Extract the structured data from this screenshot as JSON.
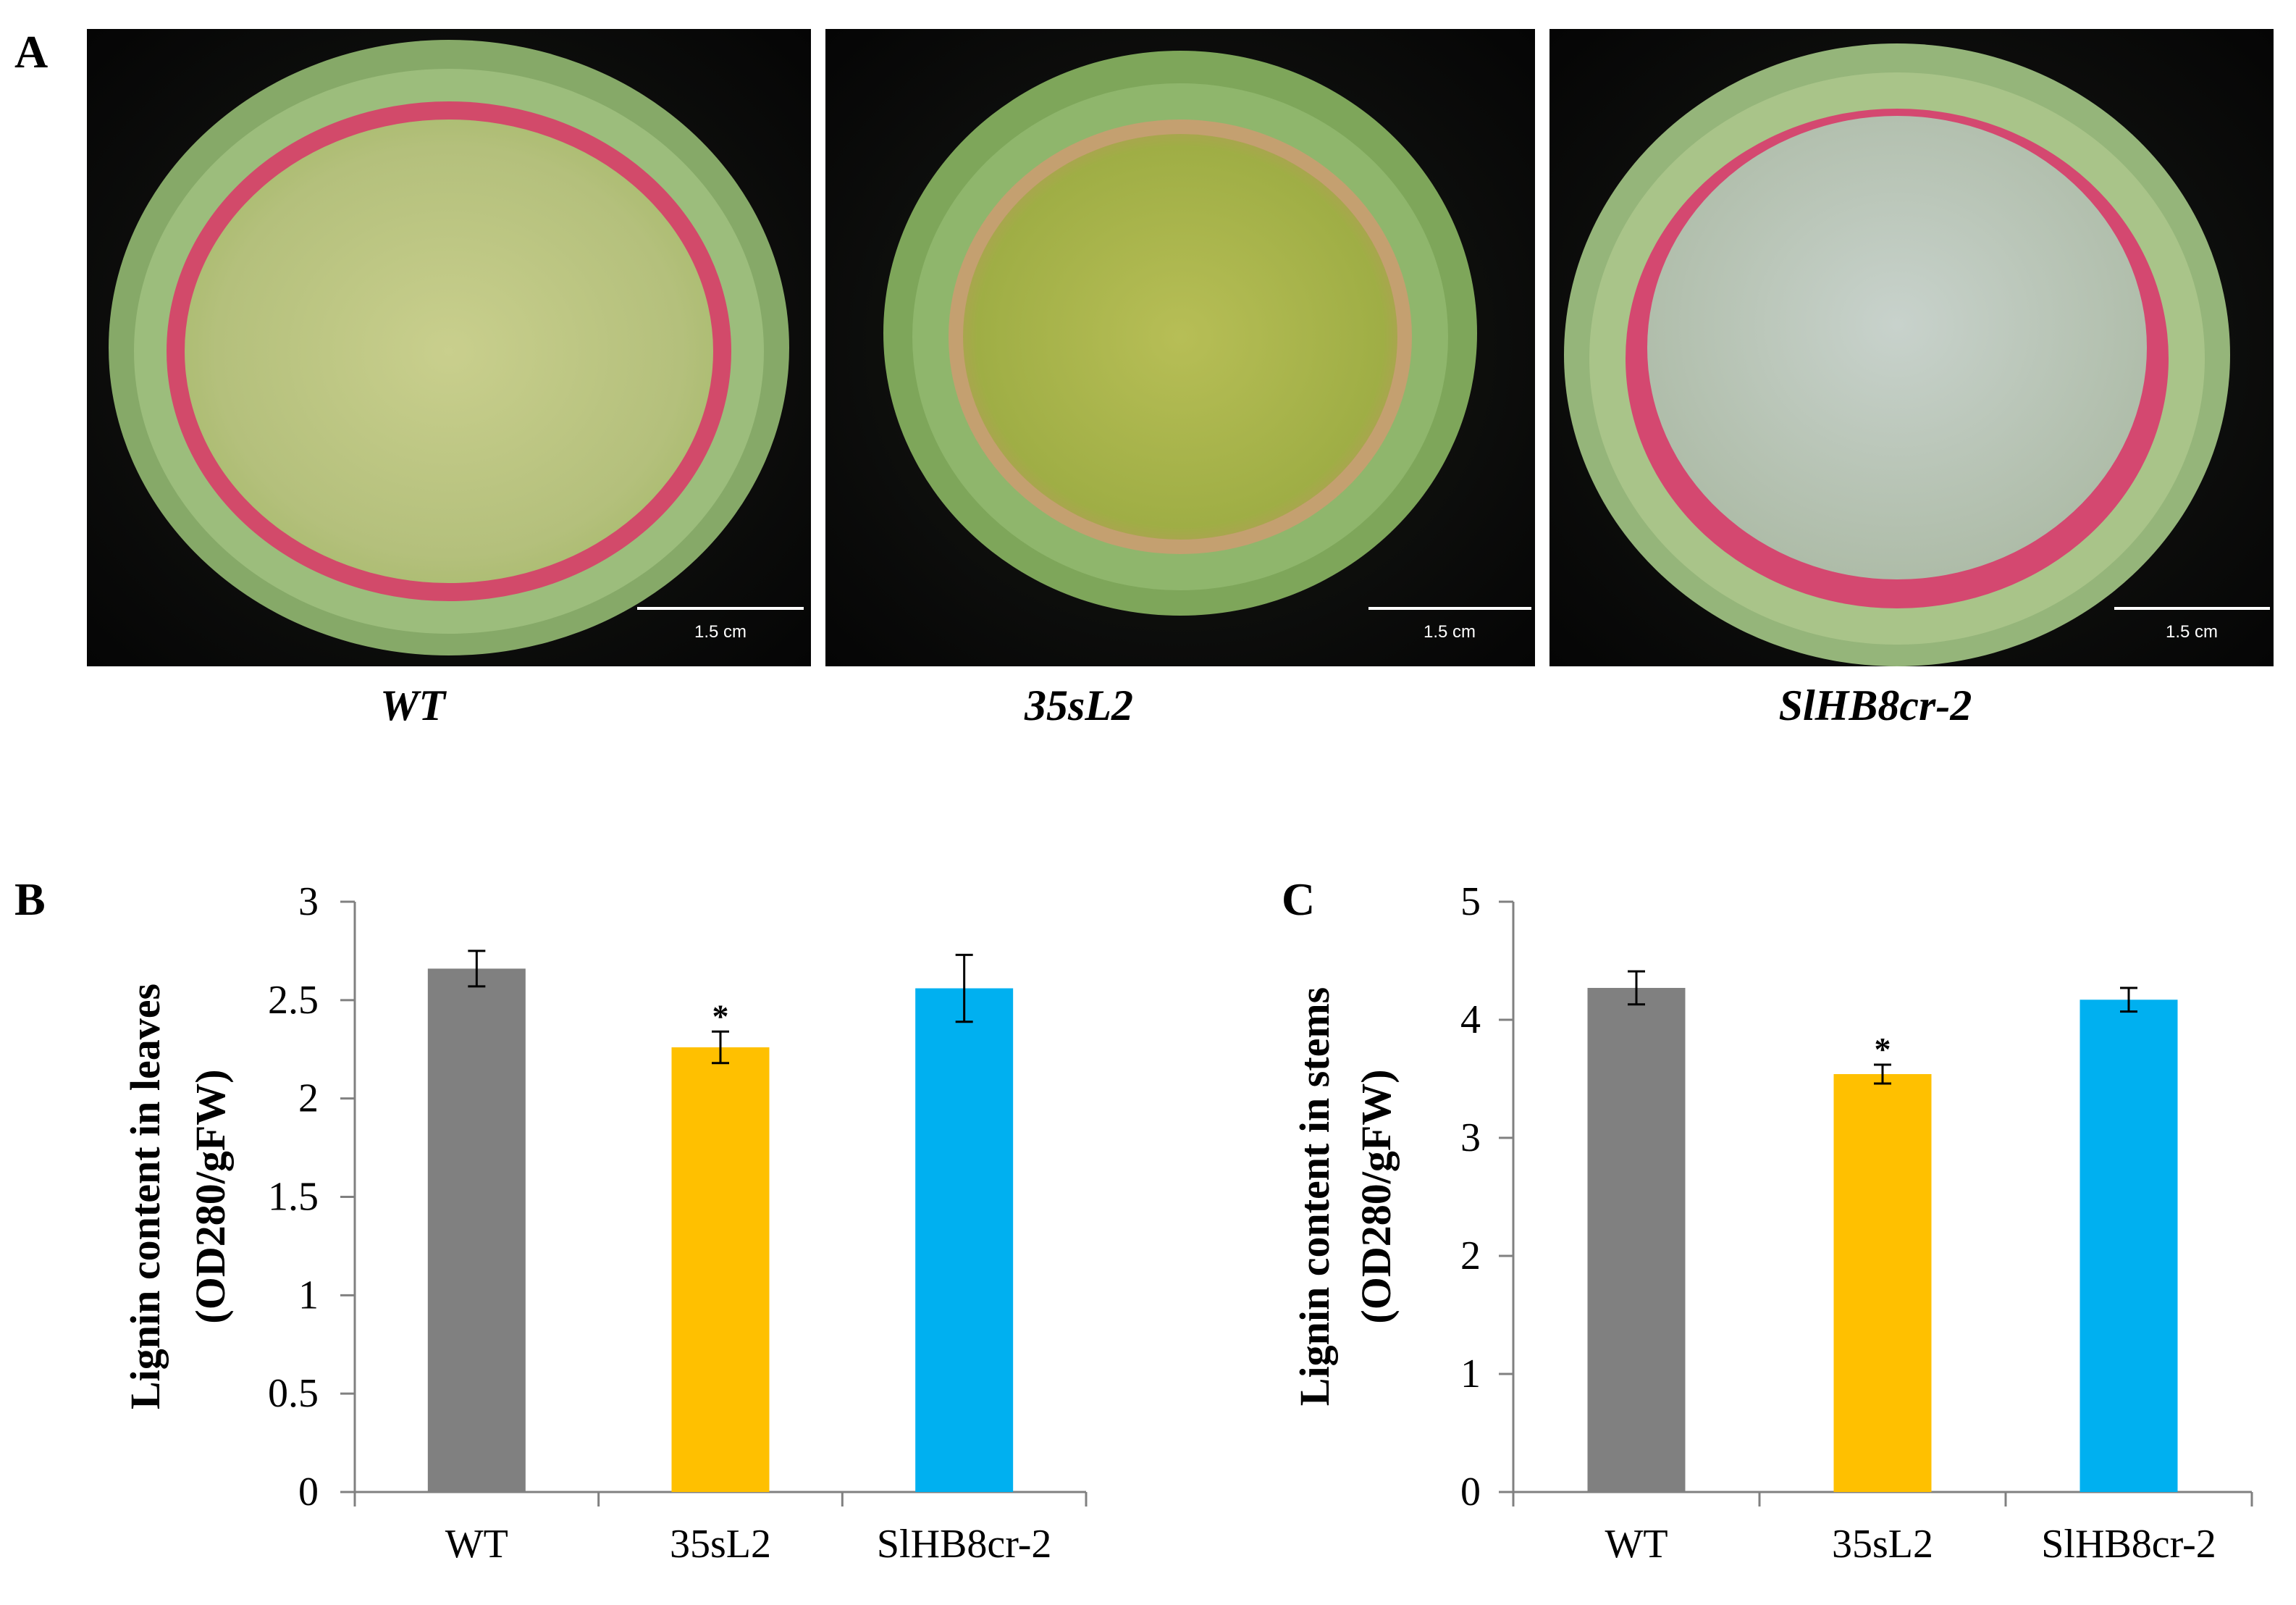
{
  "panels": {
    "a": "A",
    "b": "B",
    "c": "C"
  },
  "photos": {
    "scale_bar_label": "1.5 cm",
    "captions": [
      "WT",
      "35sL2",
      "SlHB8cr-2"
    ]
  },
  "colors": {
    "wt": "#808080",
    "l2": "#FFC000",
    "cr": "#00B0F0",
    "background": "#000000"
  },
  "chart_data": [
    {
      "type": "bar",
      "categories": [
        "WT",
        "35sL2",
        "SlHB8cr-2"
      ],
      "values": [
        2.66,
        2.26,
        2.56
      ],
      "error": [
        0.09,
        0.08,
        0.17
      ],
      "annotations": [
        "",
        "*",
        ""
      ],
      "ylabel_line1": "Lignin content in leaves",
      "ylabel_line2": "(OD280/gFW)",
      "ylim": [
        0,
        3
      ],
      "yticks": [
        "0",
        "0.5",
        "1",
        "1.5",
        "2",
        "2.5",
        "3"
      ],
      "colors": [
        "#808080",
        "#FFC000",
        "#00B0F0"
      ]
    },
    {
      "type": "bar",
      "categories": [
        "WT",
        "35sL2",
        "SlHB8cr-2"
      ],
      "values": [
        4.27,
        3.54,
        4.17
      ],
      "error": [
        0.14,
        0.08,
        0.1
      ],
      "annotations": [
        "",
        "*",
        ""
      ],
      "ylabel_line1": "Lignin content in stems",
      "ylabel_line2": "(OD280/gFW)",
      "ylim": [
        0,
        5
      ],
      "yticks": [
        "0",
        "1",
        "2",
        "3",
        "4",
        "5"
      ],
      "colors": [
        "#808080",
        "#FFC000",
        "#00B0F0"
      ]
    }
  ]
}
